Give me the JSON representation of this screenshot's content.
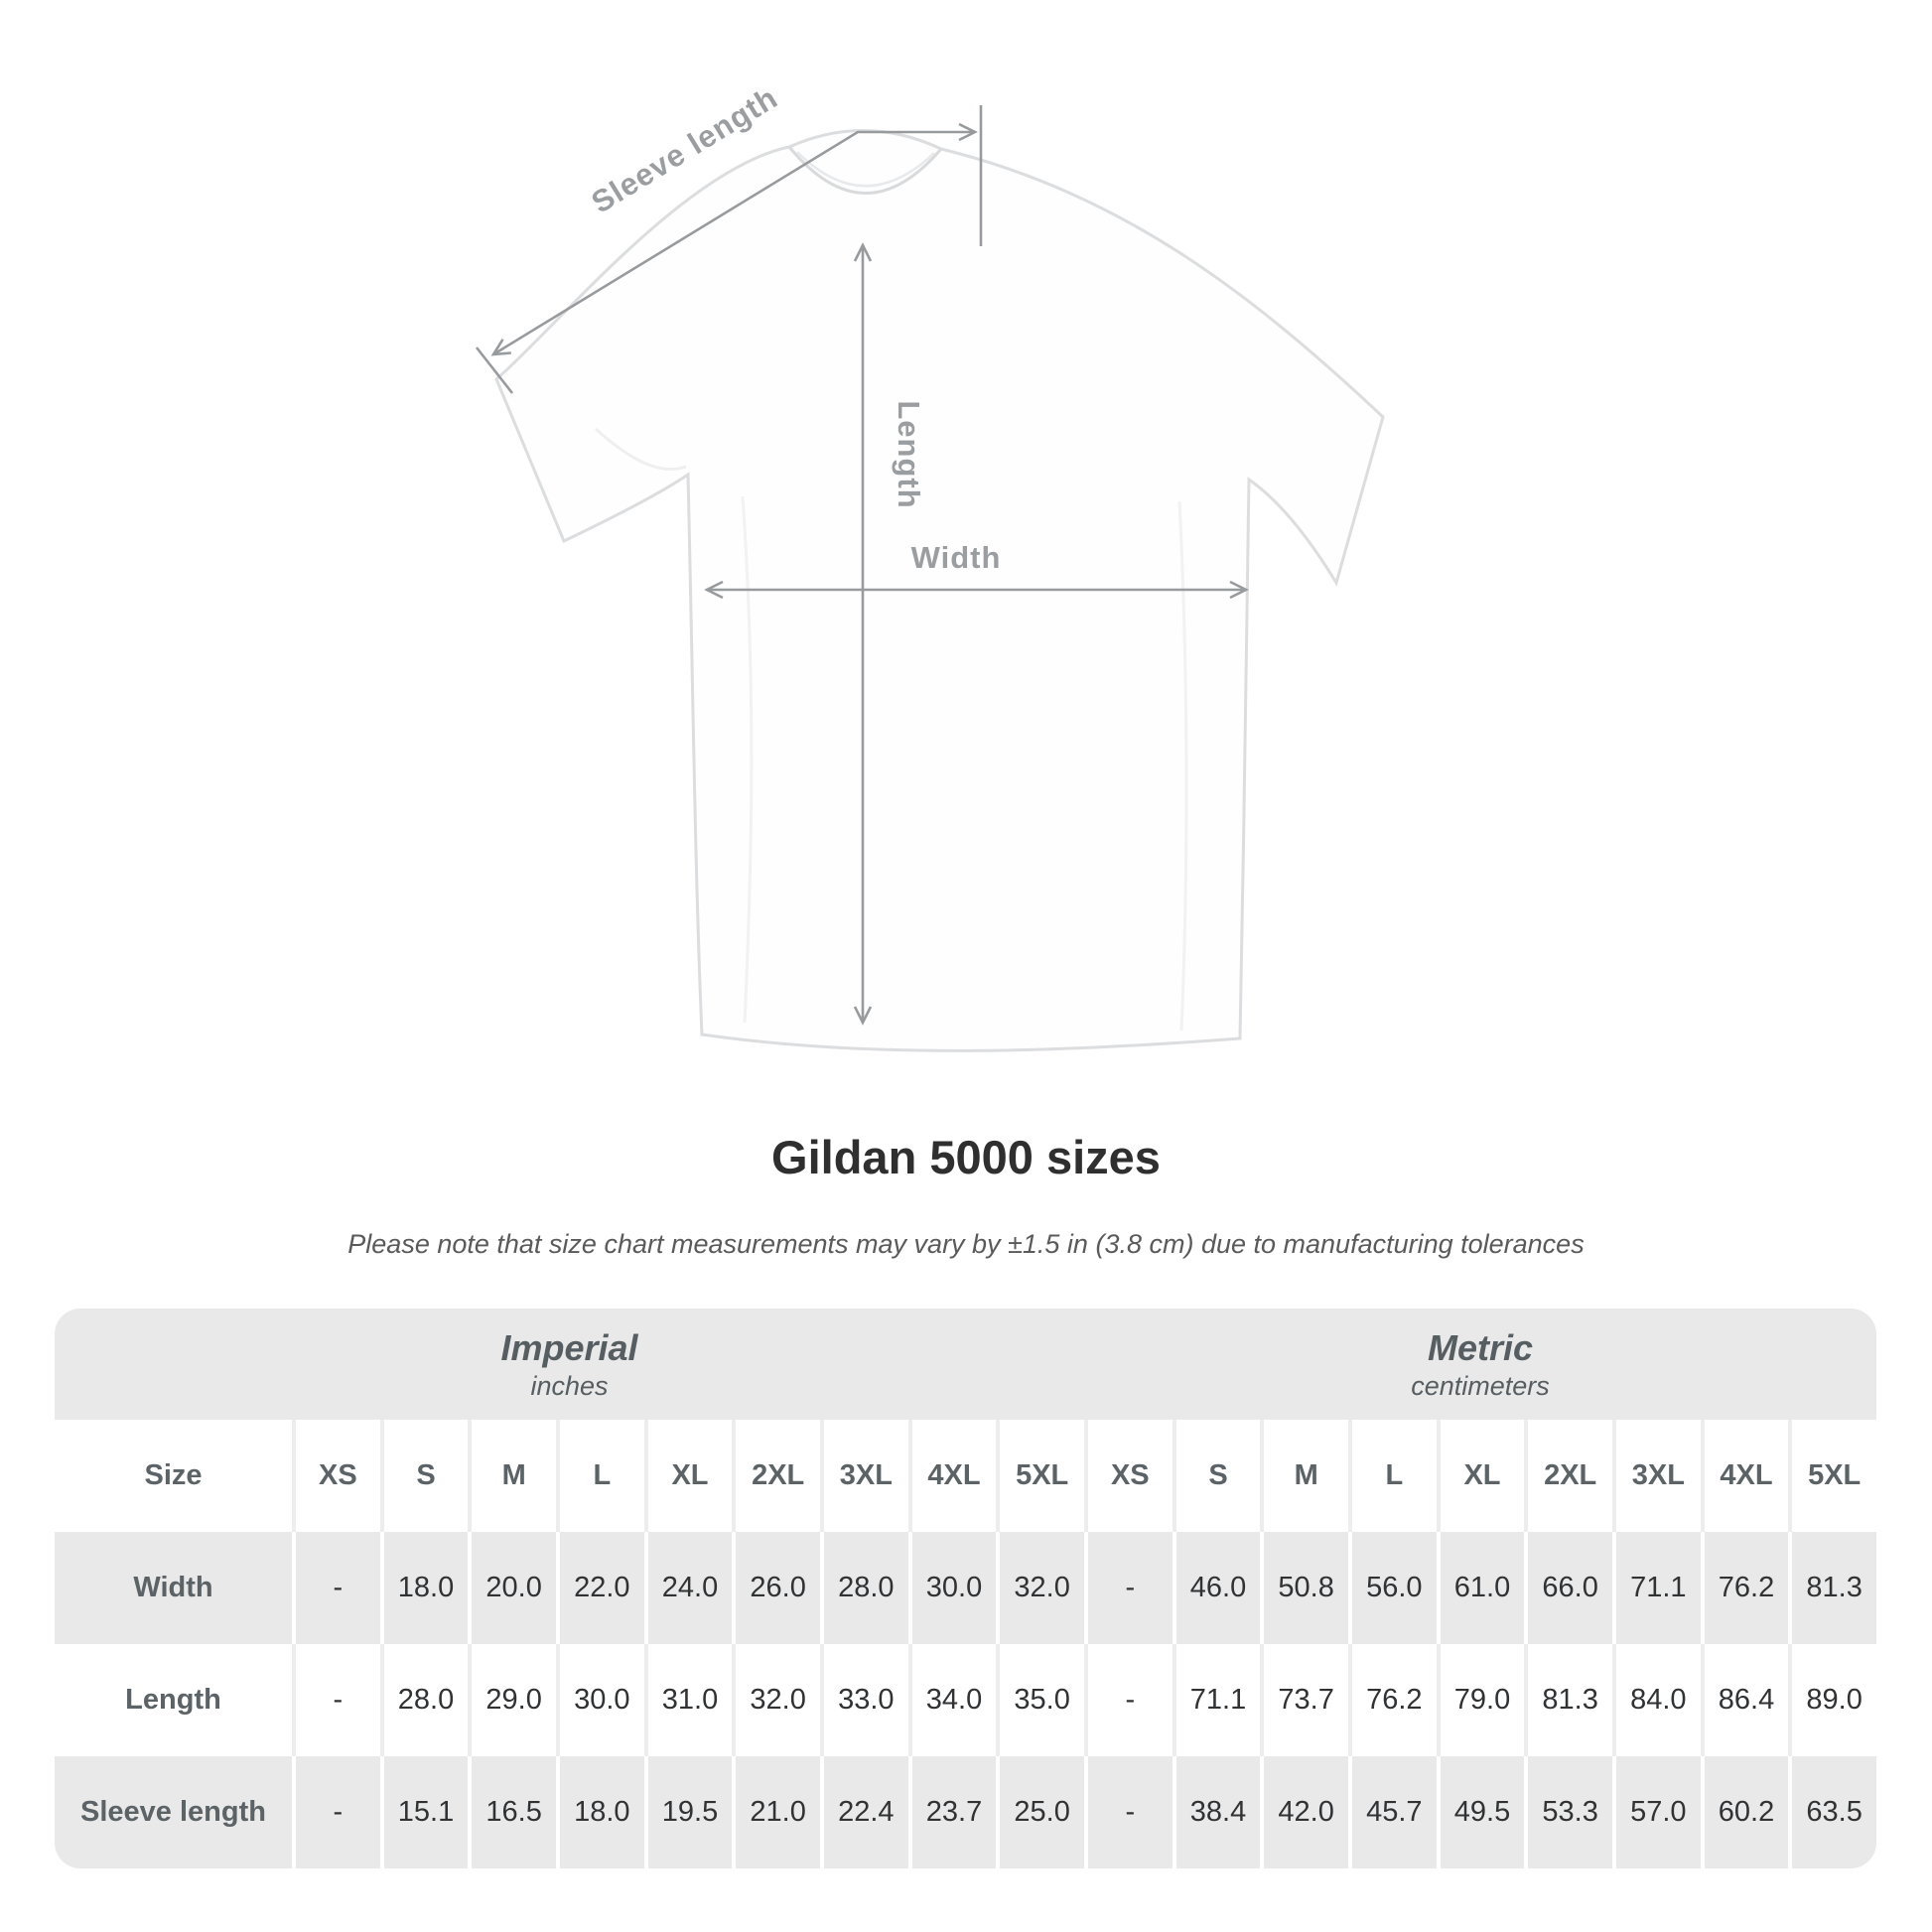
{
  "illustration": {
    "labels": {
      "sleeve_length": "Sleeve length",
      "length": "Length",
      "width": "Width"
    },
    "colors": {
      "dimension_line": "#989b9e",
      "label_text": "#9b9ea1",
      "shirt_outline": "#dcdddf"
    }
  },
  "heading": {
    "title": "Gildan 5000 sizes",
    "note": "Please note that size chart measurements may vary by ±1.5 in (3.8 cm) due to manufacturing tolerances"
  },
  "table": {
    "groups": [
      {
        "name": "Imperial",
        "unit": "inches"
      },
      {
        "name": "Metric",
        "unit": "centimeters"
      }
    ],
    "size_column_header": "Size",
    "sizes": [
      "XS",
      "S",
      "M",
      "L",
      "XL",
      "2XL",
      "3XL",
      "4XL",
      "5XL"
    ],
    "rows": [
      {
        "label": "Width",
        "imperial": [
          "-",
          "18.0",
          "20.0",
          "22.0",
          "24.0",
          "26.0",
          "28.0",
          "30.0",
          "32.0"
        ],
        "metric": [
          "-",
          "46.0",
          "50.8",
          "56.0",
          "61.0",
          "66.0",
          "71.1",
          "76.2",
          "81.3"
        ]
      },
      {
        "label": "Length",
        "imperial": [
          "-",
          "28.0",
          "29.0",
          "30.0",
          "31.0",
          "32.0",
          "33.0",
          "34.0",
          "35.0"
        ],
        "metric": [
          "-",
          "71.1",
          "73.7",
          "76.2",
          "79.0",
          "81.3",
          "84.0",
          "86.4",
          "89.0"
        ]
      },
      {
        "label": "Sleeve length",
        "imperial": [
          "-",
          "15.1",
          "16.5",
          "18.0",
          "19.5",
          "21.0",
          "22.4",
          "23.7",
          "25.0"
        ],
        "metric": [
          "-",
          "38.4",
          "42.0",
          "45.7",
          "49.5",
          "53.3",
          "57.0",
          "60.2",
          "63.5"
        ]
      }
    ],
    "colors": {
      "band_gray": "#e9e9e9",
      "row_gray": "#e9e9e9",
      "header_text": "#5c6367",
      "value_text": "#303234"
    }
  }
}
